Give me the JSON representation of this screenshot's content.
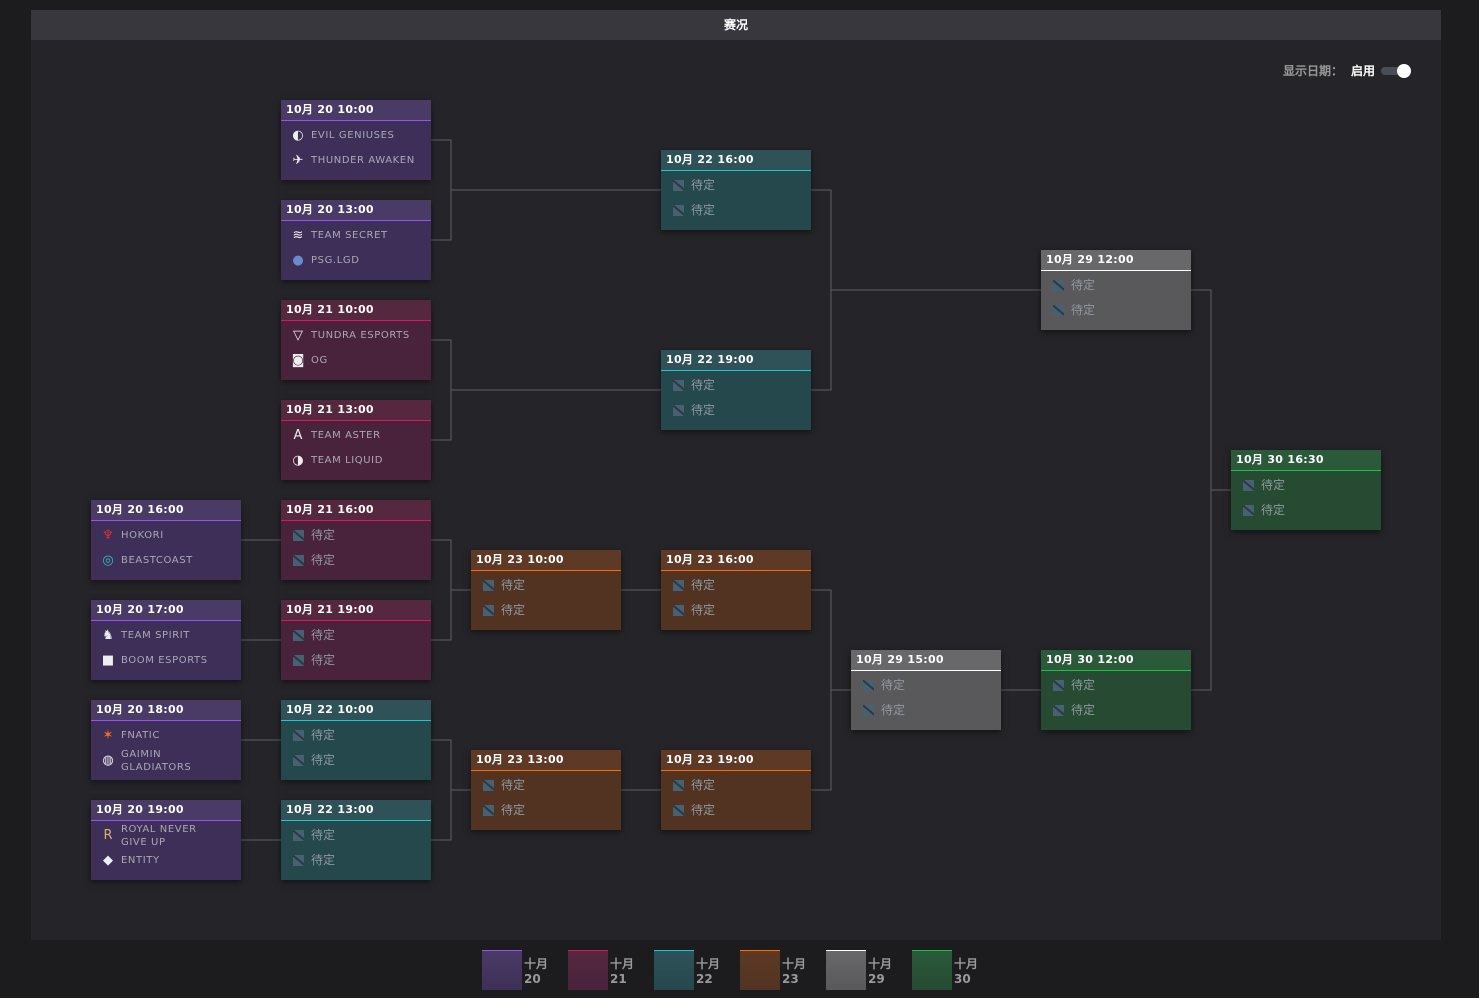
{
  "title": "赛况",
  "toggle": {
    "label": "显示日期：",
    "state": "启用",
    "on": true
  },
  "colors": {
    "d20": {
      "hd": "#4a3b66",
      "bd": "#3e2f58",
      "ln": "#9a4ff0"
    },
    "d21": {
      "hd": "#56283f",
      "bd": "#49223c",
      "ln": "#e0145e"
    },
    "d22": {
      "hd": "#2e5257",
      "bd": "#24484c",
      "ln": "#18c8d0"
    },
    "d23": {
      "hd": "#5e3925",
      "bd": "#523322",
      "ln": "#ff6a00"
    },
    "d29": {
      "hd": "#68686a",
      "bd": "#59595b",
      "ln": "#ffffff"
    },
    "d30": {
      "hd": "#2b5a3b",
      "bd": "#264b32",
      "ln": "#14c43c"
    }
  },
  "matches": [
    {
      "id": "ub-r1-1",
      "date": "10月 20 10:00",
      "color": "d20",
      "teams": [
        {
          "name": "EVIL GENIUSES",
          "icon": "evil-geniuses-logo"
        },
        {
          "name": "THUNDER AWAKEN",
          "icon": "thunder-awaken-logo"
        }
      ]
    },
    {
      "id": "ub-r1-2",
      "date": "10月 20 13:00",
      "color": "d20",
      "teams": [
        {
          "name": "TEAM SECRET",
          "icon": "team-secret-logo"
        },
        {
          "name": "PSG.LGD",
          "icon": "psg-lgd-logo"
        }
      ]
    },
    {
      "id": "ub-r1-3",
      "date": "10月 21 10:00",
      "color": "d21",
      "teams": [
        {
          "name": "TUNDRA ESPORTS",
          "icon": "tundra-logo"
        },
        {
          "name": "OG",
          "icon": "og-logo"
        }
      ]
    },
    {
      "id": "ub-r1-4",
      "date": "10月 21 13:00",
      "color": "d21",
      "teams": [
        {
          "name": "TEAM ASTER",
          "icon": "team-aster-logo"
        },
        {
          "name": "TEAM LIQUID",
          "icon": "team-liquid-logo"
        }
      ]
    },
    {
      "id": "lb-r1-1",
      "date": "10月 20 16:00",
      "color": "d20",
      "teams": [
        {
          "name": "HOKORI",
          "icon": "hokori-logo"
        },
        {
          "name": "BEASTCOAST",
          "icon": "beastcoast-logo"
        }
      ]
    },
    {
      "id": "lb-r1-2",
      "date": "10月 20 17:00",
      "color": "d20",
      "teams": [
        {
          "name": "TEAM SPIRIT",
          "icon": "team-spirit-logo"
        },
        {
          "name": "BOOM ESPORTS",
          "icon": "boom-logo"
        }
      ]
    },
    {
      "id": "lb-r1-3",
      "date": "10月 20 18:00",
      "color": "d20",
      "teams": [
        {
          "name": "FNATIC",
          "icon": "fnatic-logo"
        },
        {
          "name": "GAIMIN GLADIATORS",
          "icon": "gaimin-logo"
        }
      ]
    },
    {
      "id": "lb-r1-4",
      "date": "10月 20 19:00",
      "color": "d20",
      "teams": [
        {
          "name": "ROYAL NEVER GIVE UP",
          "icon": "rng-logo"
        },
        {
          "name": "ENTITY",
          "icon": "entity-logo"
        }
      ]
    },
    {
      "id": "lb-r2-1",
      "date": "10月 21 16:00",
      "color": "d21",
      "teams": [
        {
          "name": "待定"
        },
        {
          "name": "待定"
        }
      ]
    },
    {
      "id": "lb-r2-2",
      "date": "10月 21 19:00",
      "color": "d21",
      "teams": [
        {
          "name": "待定"
        },
        {
          "name": "待定"
        }
      ]
    },
    {
      "id": "lb-r2-3",
      "date": "10月 22 10:00",
      "color": "d22",
      "teams": [
        {
          "name": "待定"
        },
        {
          "name": "待定"
        }
      ]
    },
    {
      "id": "lb-r2-4",
      "date": "10月 22 13:00",
      "color": "d22",
      "teams": [
        {
          "name": "待定"
        },
        {
          "name": "待定"
        }
      ]
    },
    {
      "id": "lb-r3-1",
      "date": "10月 23 10:00",
      "color": "d23",
      "teams": [
        {
          "name": "待定"
        },
        {
          "name": "待定"
        }
      ]
    },
    {
      "id": "lb-r3-2",
      "date": "10月 23 13:00",
      "color": "d23",
      "teams": [
        {
          "name": "待定"
        },
        {
          "name": "待定"
        }
      ]
    },
    {
      "id": "ub-r2-1",
      "date": "10月 22 16:00",
      "color": "d22",
      "teams": [
        {
          "name": "待定"
        },
        {
          "name": "待定"
        }
      ]
    },
    {
      "id": "ub-r2-2",
      "date": "10月 22 19:00",
      "color": "d22",
      "teams": [
        {
          "name": "待定"
        },
        {
          "name": "待定"
        }
      ]
    },
    {
      "id": "lb-r4-1",
      "date": "10月 23 16:00",
      "color": "d23",
      "teams": [
        {
          "name": "待定"
        },
        {
          "name": "待定"
        }
      ]
    },
    {
      "id": "lb-r4-2",
      "date": "10月 23 19:00",
      "color": "d23",
      "teams": [
        {
          "name": "待定"
        },
        {
          "name": "待定"
        }
      ]
    },
    {
      "id": "lb-r5",
      "date": "10月 29 15:00",
      "color": "d29",
      "teams": [
        {
          "name": "待定"
        },
        {
          "name": "待定"
        }
      ]
    },
    {
      "id": "ub-final",
      "date": "10月 29 12:00",
      "color": "d29",
      "teams": [
        {
          "name": "待定"
        },
        {
          "name": "待定"
        }
      ]
    },
    {
      "id": "lb-final",
      "date": "10月 30 12:00",
      "color": "d30",
      "teams": [
        {
          "name": "待定"
        },
        {
          "name": "待定"
        }
      ]
    },
    {
      "id": "grand-final",
      "date": "10月 30 16:30",
      "color": "d30",
      "teams": [
        {
          "name": "待定"
        },
        {
          "name": "待定"
        }
      ]
    }
  ],
  "legend": [
    {
      "label": "十月 20",
      "color": "d20"
    },
    {
      "label": "十月 21",
      "color": "d21"
    },
    {
      "label": "十月 22",
      "color": "d22"
    },
    {
      "label": "十月 23",
      "color": "d23"
    },
    {
      "label": "十月 29",
      "color": "d29"
    },
    {
      "label": "十月 30",
      "color": "d30"
    }
  ]
}
